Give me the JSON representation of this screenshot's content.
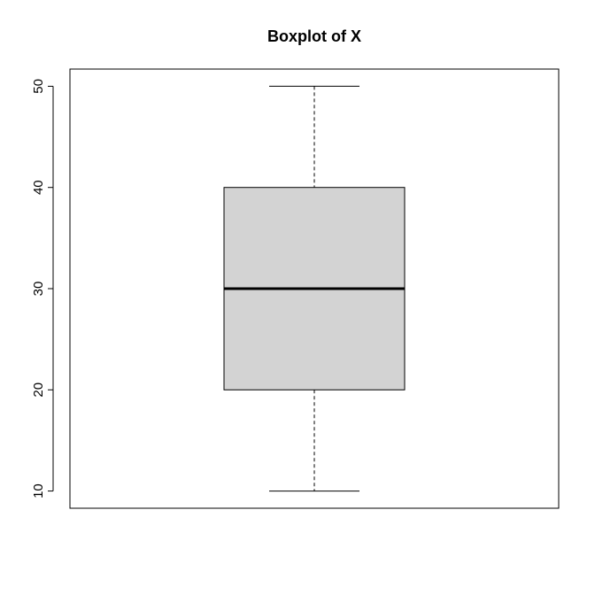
{
  "chart_data": {
    "type": "boxplot",
    "title": "Boxplot of X",
    "xlabel": "",
    "ylabel": "",
    "ylim": [
      8.3,
      51.7
    ],
    "yticks": [
      10,
      20,
      30,
      40,
      50
    ],
    "grid": false,
    "series": [
      {
        "min": 10,
        "q1": 20,
        "median": 30,
        "q3": 40,
        "max": 50
      }
    ],
    "colors": {
      "box_fill": "#d3d3d3",
      "stroke": "#000000",
      "background": "#ffffff"
    }
  }
}
